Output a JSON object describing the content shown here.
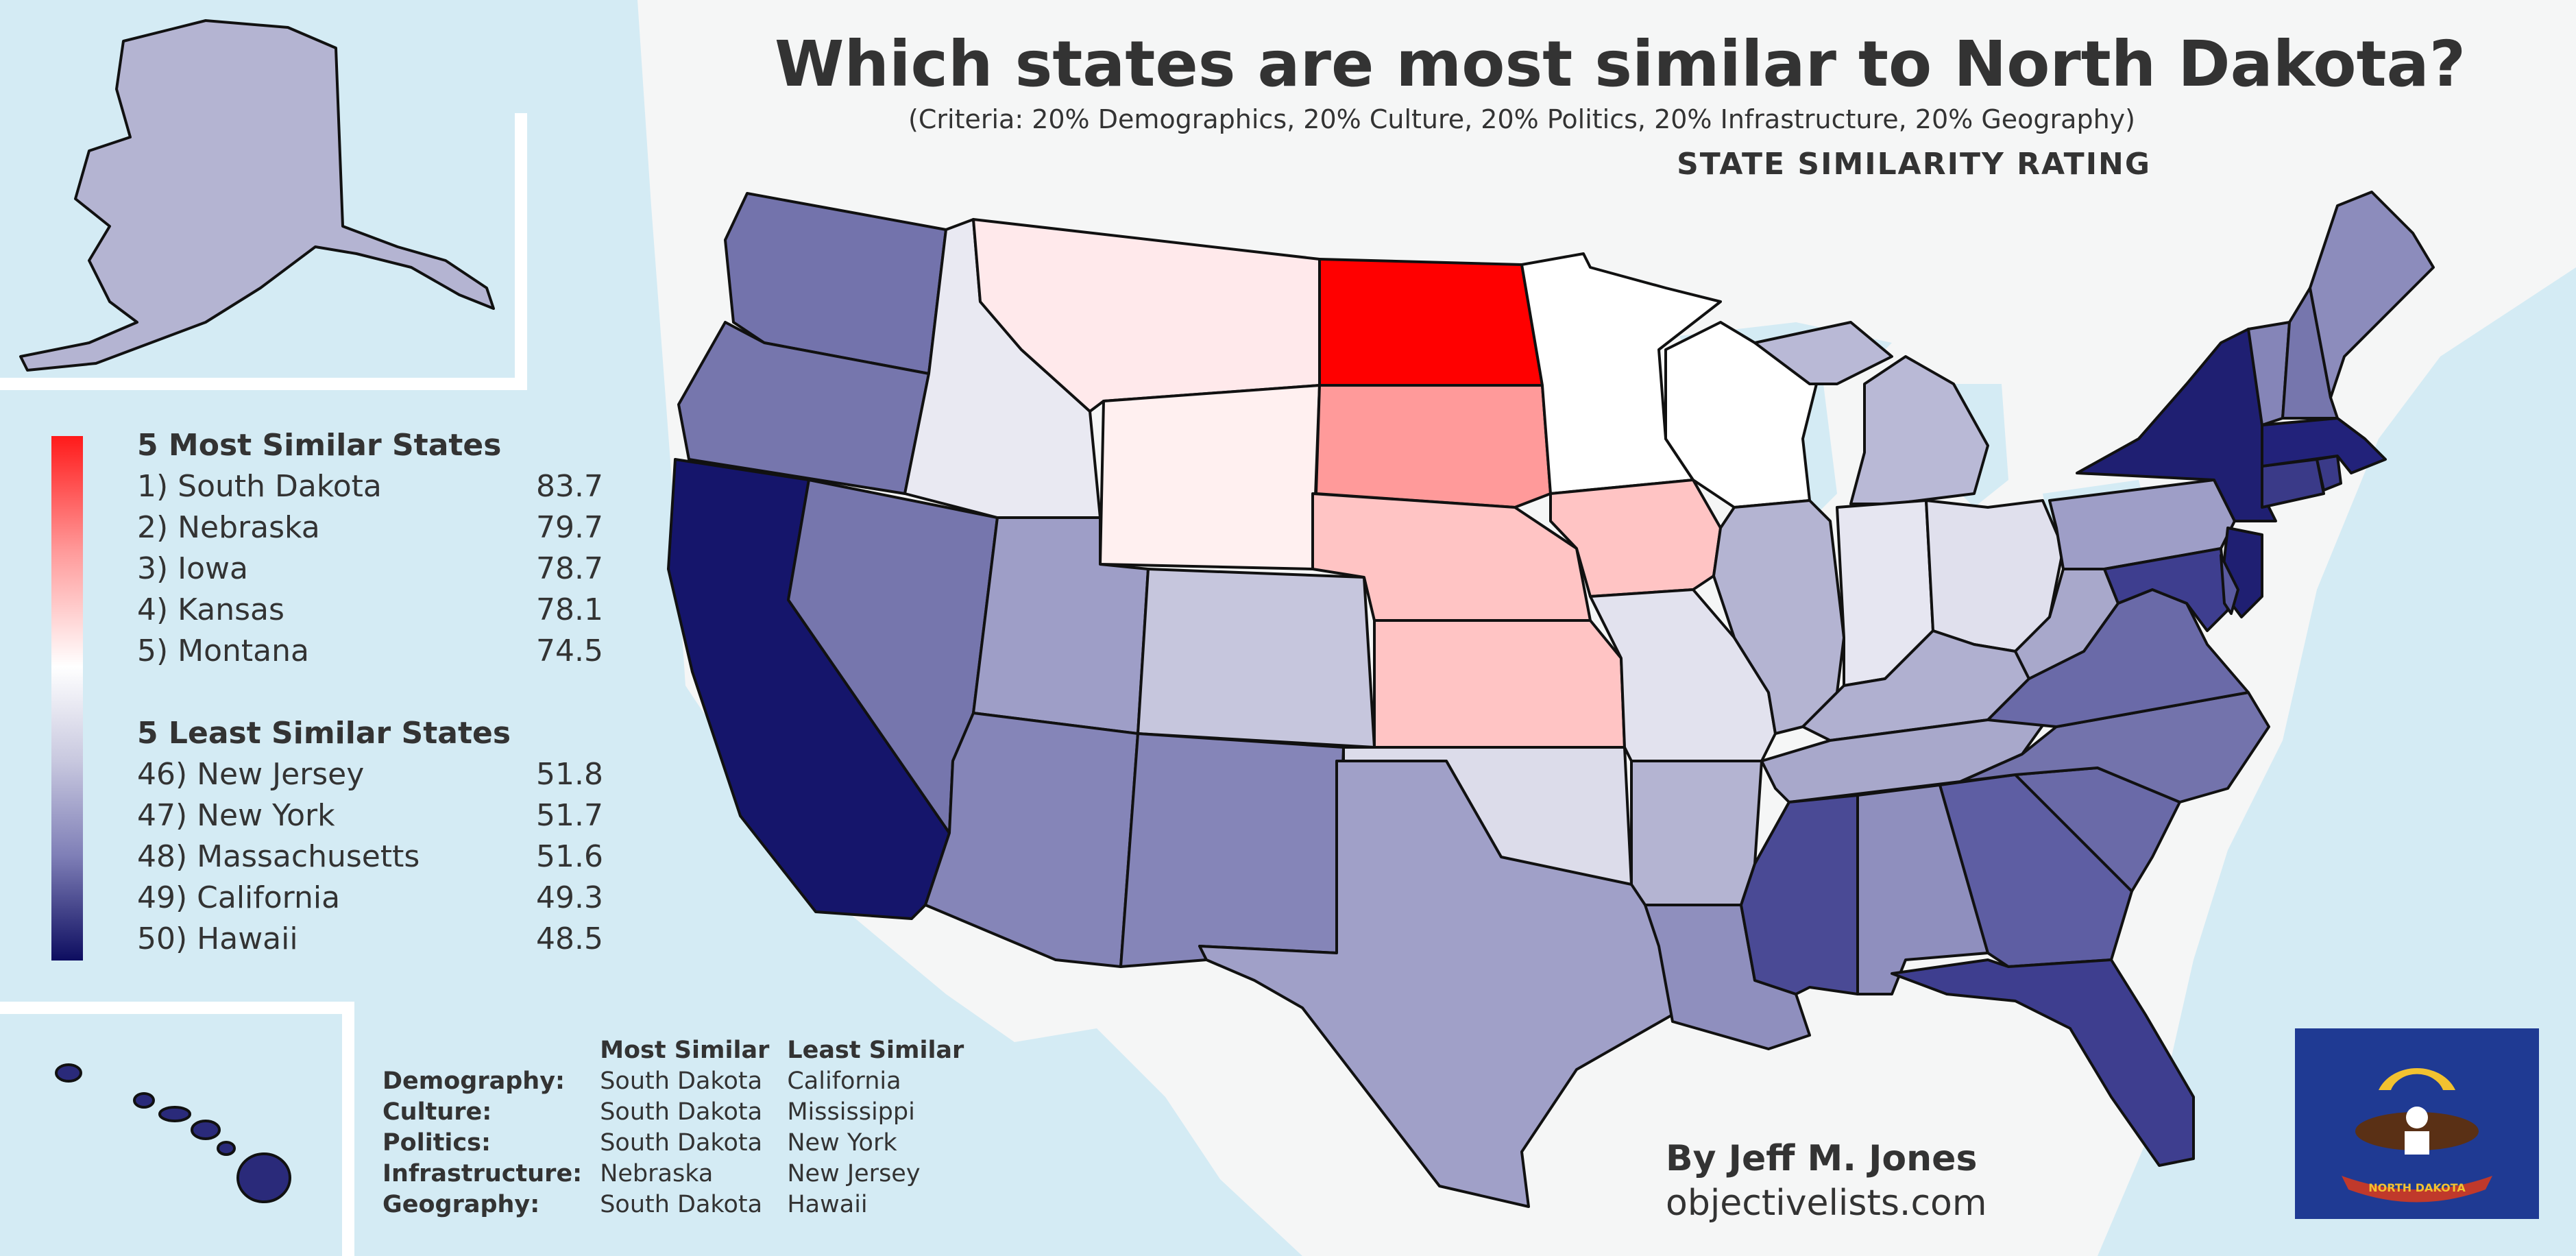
{
  "title": "Which states are most similar to North Dakota?",
  "subtitle": "(Criteria: 20% Demographics, 20% Culture, 20% Politics, 20% Infrastructure, 20% Geography)",
  "rating_label": "STATE SIMILARITY RATING",
  "legend": {
    "most_header": "5 Most Similar States",
    "most": [
      {
        "label": "1) South Dakota",
        "value": "83.7"
      },
      {
        "label": "2) Nebraska",
        "value": "79.7"
      },
      {
        "label": "3) Iowa",
        "value": "78.7"
      },
      {
        "label": "4) Kansas",
        "value": "78.1"
      },
      {
        "label": "5) Montana",
        "value": "74.5"
      }
    ],
    "least_header": "5 Least Similar States",
    "least": [
      {
        "label": "46) New Jersey",
        "value": "51.8"
      },
      {
        "label": "47) New York",
        "value": "51.7"
      },
      {
        "label": "48) Massachusetts",
        "value": "51.6"
      },
      {
        "label": "49) California",
        "value": "49.3"
      },
      {
        "label": "50) Hawaii",
        "value": "48.5"
      }
    ],
    "scale_colors": [
      "#ff1a1a",
      "#ffffff",
      "#0d0d60"
    ]
  },
  "criteria": {
    "head_most": "Most Similar",
    "head_least": "Least Similar",
    "rows": [
      {
        "criterion": "Demography:",
        "most": "South Dakota",
        "least": "California"
      },
      {
        "criterion": "Culture:",
        "most": "South Dakota",
        "least": "Mississippi"
      },
      {
        "criterion": "Politics:",
        "most": "South Dakota",
        "least": "New York"
      },
      {
        "criterion": "Infrastructure:",
        "most": "Nebraska",
        "least": "New Jersey"
      },
      {
        "criterion": "Geography:",
        "most": "South Dakota",
        "least": "Hawaii"
      }
    ]
  },
  "byline": "By Jeff M. Jones",
  "url": "objectivelists.com",
  "flag_banner": "NORTH DAKOTA",
  "colors": {
    "water": "#d4ebf4",
    "land": "#f5f6f6",
    "flag_blue": "#1f3a93"
  },
  "states": {
    "WA": "#7373ac",
    "OR": "#7676ad",
    "CA": "#15156b",
    "NV": "#7676ad",
    "ID": "#e9e9f2",
    "MT": "#ffe9eb",
    "WY": "#fff0f0",
    "UT": "#9e9ec7",
    "AZ": "#8585b8",
    "CO": "#c6c6dd",
    "NM": "#8585b8",
    "ND": "#ff0000",
    "SD": "#ff9a9a",
    "NE": "#ffc4c4",
    "KS": "#ffc4c4",
    "OK": "#dcdcea",
    "TX": "#a0a0c8",
    "MN": "#ffffff",
    "IA": "#ffc4c4",
    "MO": "#e2e2ee",
    "AR": "#b4b4d2",
    "LA": "#8f8fbe",
    "WI": "#ffffff",
    "IL": "#b4b4d2",
    "MI": "#b9b9d6",
    "IN": "#e6e6f1",
    "OH": "#e0e0ed",
    "KY": "#b0b0d0",
    "TN": "#a8a8cb",
    "MS": "#4a4a95",
    "AL": "#8f8fbe",
    "GA": "#5e5ea3",
    "FL": "#3e3e8f",
    "SC": "#6a6aa8",
    "NC": "#7373ac",
    "VA": "#6a6aa8",
    "WV": "#a8a8cb",
    "PA": "#9e9ec7",
    "NY": "#1f1f72",
    "NJ": "#1f1f72",
    "MD": "#3e3e8f",
    "DE": "#5a5aa0",
    "CT": "#3a3a88",
    "RI": "#3a3a88",
    "MA": "#22227a",
    "VT": "#8585b8",
    "NH": "#7676ad",
    "ME": "#8c8cbc",
    "AK": "#b4b4d2",
    "HI": "#2a2a7a"
  }
}
